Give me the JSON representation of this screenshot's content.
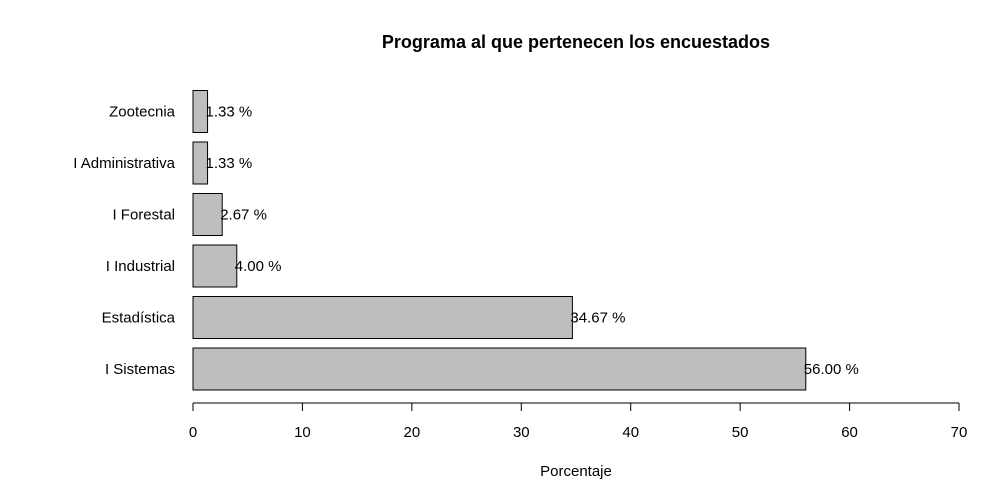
{
  "chart_data": {
    "type": "bar",
    "orientation": "horizontal",
    "title": "Programa al que pertenecen los encuestados",
    "xlabel": "Porcentaje",
    "ylabel": "",
    "categories": [
      "I Sistemas",
      "Estadística",
      "I Industrial",
      "I Forestal",
      "I Administrativa",
      "Zootecnia"
    ],
    "values": [
      56.0,
      34.67,
      4.0,
      2.67,
      1.33,
      1.33
    ],
    "data_labels": [
      "56.00 %",
      "34.67 %",
      "4.00 %",
      "2.67 %",
      "1.33 %",
      "1.33 %"
    ],
    "xlim": [
      0,
      70
    ],
    "xticks": [
      0,
      10,
      20,
      30,
      40,
      50,
      60,
      70
    ],
    "grid": false,
    "legend": "none",
    "bar_color": "#bebebe"
  }
}
